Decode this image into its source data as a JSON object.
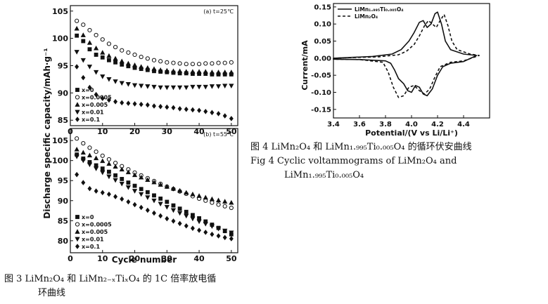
{
  "left_figure": {
    "ylabel": "Discharge specific capacity/mAh·g⁻¹",
    "xlabel": "Cycle number"
  },
  "right_figure": {
    "xlabel": "Potential/(V vs Li/Li⁺)",
    "ylabel": "Current/mA"
  },
  "chart_data": [
    {
      "type": "scatter",
      "panel": "top",
      "title": "(a) t=25℃",
      "xlim": [
        0,
        52
      ],
      "ylim": [
        84,
        106
      ],
      "x_ticks": [
        0,
        10,
        20,
        30,
        40,
        50
      ],
      "y_ticks": [
        85,
        90,
        95,
        100,
        105
      ],
      "legend_position": "bottom-left",
      "series": [
        {
          "name": "x=0",
          "marker": "square",
          "x": [
            2,
            4,
            6,
            8,
            10,
            12,
            14,
            16,
            18,
            20,
            22,
            24,
            26,
            28,
            30,
            32,
            34,
            36,
            38,
            40,
            42,
            44,
            46,
            48,
            50
          ],
          "y": [
            100.5,
            99.5,
            98.0,
            97.0,
            96.5,
            96.0,
            95.6,
            95.2,
            94.9,
            94.6,
            94.4,
            94.2,
            94.0,
            93.9,
            93.8,
            93.7,
            93.6,
            93.6,
            93.5,
            93.5,
            93.5,
            93.4,
            93.4,
            93.4,
            93.4
          ]
        },
        {
          "name": "x=0.0005",
          "marker": "circle",
          "x": [
            2,
            4,
            6,
            8,
            10,
            12,
            14,
            16,
            18,
            20,
            22,
            24,
            26,
            28,
            30,
            32,
            34,
            36,
            38,
            40,
            42,
            44,
            46,
            48,
            50
          ],
          "y": [
            103.2,
            102.5,
            101.5,
            100.6,
            99.8,
            99.0,
            98.4,
            97.8,
            97.4,
            97.0,
            96.6,
            96.3,
            96.0,
            95.8,
            95.6,
            95.5,
            95.4,
            95.3,
            95.3,
            95.3,
            95.4,
            95.4,
            95.5,
            95.5,
            95.6
          ]
        },
        {
          "name": "x=0.005",
          "marker": "triangle-up",
          "x": [
            2,
            4,
            6,
            8,
            10,
            12,
            14,
            16,
            18,
            20,
            22,
            24,
            26,
            28,
            30,
            32,
            34,
            36,
            38,
            40,
            42,
            44,
            46,
            48,
            50
          ],
          "y": [
            101.8,
            100.6,
            99.2,
            98.2,
            97.4,
            96.8,
            96.3,
            95.8,
            95.4,
            95.1,
            94.8,
            94.6,
            94.4,
            94.2,
            94.1,
            94.0,
            94.0,
            93.9,
            93.9,
            93.9,
            93.9,
            93.8,
            93.8,
            93.8,
            93.8
          ]
        },
        {
          "name": "x=0.01",
          "marker": "triangle-down",
          "x": [
            2,
            4,
            6,
            8,
            10,
            12,
            14,
            16,
            18,
            20,
            22,
            24,
            26,
            28,
            30,
            32,
            34,
            36,
            38,
            40,
            42,
            44,
            46,
            48,
            50
          ],
          "y": [
            97.5,
            96.0,
            94.8,
            93.8,
            93.0,
            92.5,
            92.1,
            91.8,
            91.6,
            91.4,
            91.3,
            91.2,
            91.1,
            91.0,
            91.0,
            91.0,
            91.0,
            91.0,
            91.1,
            91.1,
            91.1,
            91.2,
            91.2,
            91.3,
            91.3
          ]
        },
        {
          "name": "x=0.1",
          "marker": "diamond",
          "x": [
            2,
            4,
            6,
            8,
            10,
            12,
            14,
            16,
            18,
            20,
            22,
            24,
            26,
            28,
            30,
            32,
            34,
            36,
            38,
            40,
            42,
            44,
            46,
            48,
            50
          ],
          "y": [
            94.8,
            92.8,
            91.0,
            89.7,
            89.0,
            88.7,
            88.4,
            88.2,
            88.1,
            88.0,
            87.9,
            87.8,
            87.6,
            87.5,
            87.4,
            87.3,
            87.1,
            87.0,
            86.9,
            86.8,
            86.6,
            86.4,
            86.2,
            85.8,
            85.3
          ]
        }
      ]
    },
    {
      "type": "scatter",
      "panel": "bottom",
      "title": "(b) t=55℃",
      "xlim": [
        0,
        52
      ],
      "ylim": [
        77,
        108
      ],
      "x_ticks": [
        0,
        10,
        20,
        30,
        40,
        50
      ],
      "y_ticks": [
        80,
        85,
        90,
        95,
        100,
        105
      ],
      "legend_position": "bottom-left",
      "series": [
        {
          "name": "x=0",
          "marker": "square",
          "x": [
            2,
            4,
            6,
            8,
            10,
            12,
            14,
            16,
            18,
            20,
            22,
            24,
            26,
            28,
            30,
            32,
            34,
            36,
            38,
            40,
            42,
            44,
            46,
            48,
            50
          ],
          "y": [
            101.5,
            100.5,
            99.6,
            98.8,
            98.0,
            97.2,
            96.3,
            95.4,
            94.5,
            93.7,
            92.9,
            92.1,
            91.3,
            90.5,
            89.7,
            88.8,
            88.0,
            87.2,
            86.4,
            85.6,
            84.8,
            84.0,
            83.2,
            82.4,
            81.6
          ]
        },
        {
          "name": "x=0.0005",
          "marker": "circle",
          "x": [
            2,
            4,
            6,
            8,
            10,
            12,
            14,
            16,
            18,
            20,
            22,
            24,
            26,
            28,
            30,
            32,
            34,
            36,
            38,
            40,
            42,
            44,
            46,
            48,
            50
          ],
          "y": [
            105.5,
            104.3,
            103.2,
            102.2,
            101.2,
            100.3,
            99.4,
            98.6,
            97.8,
            97.0,
            96.3,
            95.6,
            94.9,
            94.2,
            93.5,
            92.9,
            92.3,
            91.7,
            91.1,
            90.5,
            90.0,
            89.5,
            89.0,
            88.6,
            88.2
          ]
        },
        {
          "name": "x=0.005",
          "marker": "triangle-up",
          "x": [
            2,
            4,
            6,
            8,
            10,
            12,
            14,
            16,
            18,
            20,
            22,
            24,
            26,
            28,
            30,
            32,
            34,
            36,
            38,
            40,
            42,
            44,
            46,
            48,
            50
          ],
          "y": [
            102.8,
            102.0,
            101.3,
            100.6,
            99.9,
            99.2,
            98.5,
            97.8,
            97.1,
            96.4,
            95.8,
            95.2,
            94.6,
            94.0,
            93.5,
            93.0,
            92.5,
            92.0,
            91.6,
            91.2,
            90.8,
            90.4,
            90.1,
            89.8,
            89.5
          ]
        },
        {
          "name": "x=0.01",
          "marker": "triangle-down",
          "x": [
            2,
            4,
            6,
            8,
            10,
            12,
            14,
            16,
            18,
            20,
            22,
            24,
            26,
            28,
            30,
            32,
            34,
            36,
            38,
            40,
            42,
            44,
            46,
            48,
            50
          ],
          "y": [
            101.0,
            100.0,
            99.0,
            98.0,
            97.0,
            96.0,
            95.1,
            94.2,
            93.3,
            92.4,
            91.6,
            90.8,
            90.0,
            89.2,
            88.4,
            87.6,
            86.9,
            86.2,
            85.5,
            84.8,
            84.2,
            83.6,
            83.0,
            82.5,
            82.0
          ]
        },
        {
          "name": "x=0.1",
          "marker": "diamond",
          "x": [
            2,
            4,
            6,
            8,
            10,
            12,
            14,
            16,
            18,
            20,
            22,
            24,
            26,
            28,
            30,
            32,
            34,
            36,
            38,
            40,
            42,
            44,
            46,
            48,
            50
          ],
          "y": [
            96.5,
            94.5,
            93.0,
            92.4,
            92.0,
            91.6,
            91.0,
            90.4,
            89.7,
            89.0,
            88.3,
            87.6,
            86.9,
            86.2,
            85.5,
            84.9,
            84.3,
            83.7,
            83.1,
            82.6,
            82.1,
            81.6,
            81.2,
            80.8,
            80.5
          ]
        }
      ]
    },
    {
      "type": "line",
      "title": "",
      "xlim": [
        3.4,
        4.6
      ],
      "ylim": [
        -0.175,
        0.16
      ],
      "x_ticks": [
        3.4,
        3.6,
        3.8,
        4.0,
        4.2,
        4.4
      ],
      "y_ticks": [
        -0.15,
        -0.1,
        -0.05,
        0.0,
        0.05,
        0.1,
        0.15
      ],
      "legend_position": "top-left",
      "series": [
        {
          "name": "LiMn₁.₉₉₅Ti₀.₀₀₅O₄",
          "style": "solid",
          "x": [
            3.4,
            3.7,
            3.85,
            3.92,
            3.98,
            4.02,
            4.06,
            4.09,
            4.12,
            4.15,
            4.18,
            4.2,
            4.23,
            4.26,
            4.3,
            4.4,
            4.5,
            4.4,
            4.3,
            4.24,
            4.2,
            4.16,
            4.12,
            4.09,
            4.06,
            4.03,
            4.0,
            3.97,
            3.94,
            3.9,
            3.87,
            3.84,
            3.8,
            3.6,
            3.4
          ],
          "y": [
            0.0,
            0.005,
            0.012,
            0.025,
            0.05,
            0.075,
            0.105,
            0.11,
            0.09,
            0.1,
            0.13,
            0.135,
            0.1,
            0.05,
            0.025,
            0.012,
            0.008,
            -0.01,
            -0.015,
            -0.025,
            -0.05,
            -0.09,
            -0.11,
            -0.105,
            -0.085,
            -0.08,
            -0.1,
            -0.095,
            -0.075,
            -0.06,
            -0.035,
            -0.015,
            -0.008,
            -0.004,
            -0.003
          ]
        },
        {
          "name": "LiMn₂O₄",
          "style": "dashed",
          "x": [
            3.4,
            3.75,
            3.9,
            3.96,
            4.02,
            4.06,
            4.1,
            4.13,
            4.16,
            4.19,
            4.22,
            4.25,
            4.28,
            4.31,
            4.35,
            4.45,
            4.52,
            4.4,
            4.3,
            4.22,
            4.18,
            4.14,
            4.1,
            4.06,
            4.02,
            3.98,
            3.94,
            3.9,
            3.86,
            3.82,
            3.78,
            3.6,
            3.4
          ],
          "y": [
            0.0,
            0.004,
            0.01,
            0.02,
            0.04,
            0.065,
            0.095,
            0.11,
            0.1,
            0.09,
            0.11,
            0.128,
            0.095,
            0.05,
            0.025,
            0.012,
            0.008,
            -0.008,
            -0.012,
            -0.025,
            -0.055,
            -0.09,
            -0.105,
            -0.095,
            -0.08,
            -0.085,
            -0.11,
            -0.115,
            -0.085,
            -0.04,
            -0.012,
            -0.004,
            -0.003
          ]
        }
      ]
    }
  ],
  "captions": {
    "fig3_line1": "图 3   LiMn₂O₄ 和 LiMn₂₋ₓTiₓO₄ 的 1C 倍率放电循",
    "fig3_line2": "环曲线",
    "fig4_line1": "图 4   LiMn₂O₄ 和 LiMn₁.₉₉₅Ti₀.₀₀₅O₄ 的循环伏安曲线",
    "fig4_line2": "Fig 4   Cyclic voltammograms of LiMn₂O₄ and",
    "fig4_line3": "LiMn₁.₉₉₅Ti₀.₀₀₅O₄"
  }
}
